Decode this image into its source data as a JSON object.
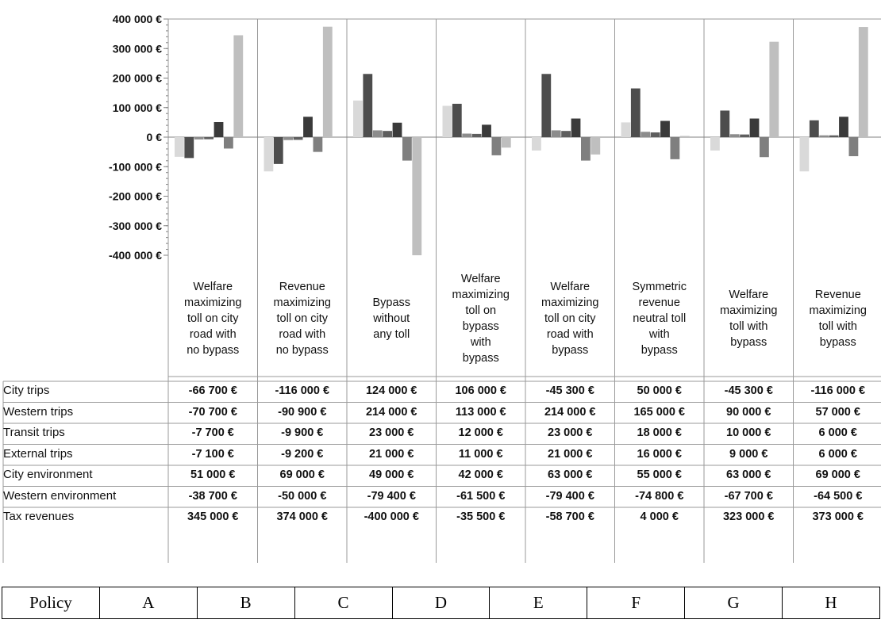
{
  "chart_data": {
    "type": "bar",
    "ylim": [
      -400000,
      400000
    ],
    "y_ticks": [
      "400 000 €",
      "300 000 €",
      "200 000 €",
      "100 000 €",
      "0 €",
      "-100 000 €",
      "-200 000 €",
      "-300 000 €",
      "-400 000 €"
    ],
    "y_tick_values": [
      400000,
      300000,
      200000,
      100000,
      0,
      -100000,
      -200000,
      -300000,
      -400000
    ],
    "categories": [
      "Welfare maximizing toll on city road with no bypass",
      "Revenue maximizing toll on city road with no bypass",
      "Bypass without any toll",
      "Welfare maximizing toll on bypass with bypass",
      "Welfare maximizing toll on city road with bypass",
      "Symmetric revenue neutral toll with bypass",
      "Welfare maximizing toll with bypass",
      "Revenue maximizing toll with bypass"
    ],
    "category_lines": [
      [
        "Welfare",
        "maximizing",
        "toll on city",
        "road with",
        "no bypass"
      ],
      [
        "Revenue",
        "maximizing",
        "toll on city",
        "road with",
        "no bypass"
      ],
      [
        "Bypass",
        "without",
        "any toll"
      ],
      [
        "Welfare",
        "maximizing",
        "toll on",
        "bypass",
        "with",
        "bypass"
      ],
      [
        "Welfare",
        "maximizing",
        "toll on city",
        "road with",
        "bypass"
      ],
      [
        "Symmetric",
        "revenue",
        "neutral toll",
        "with",
        "bypass"
      ],
      [
        "Welfare",
        "maximizing",
        "toll with",
        "bypass"
      ],
      [
        "Revenue",
        "maximizing",
        "toll with",
        "bypass"
      ]
    ],
    "series": [
      {
        "name": "City trips",
        "color": "#d9d9d9",
        "values": [
          -66700,
          -116000,
          124000,
          106000,
          -45300,
          50000,
          -45300,
          -116000
        ],
        "labels": [
          "-66 700 €",
          "-116 000 €",
          "124 000 €",
          "106 000 €",
          "-45 300 €",
          "50 000 €",
          "-45 300 €",
          "-116 000 €"
        ]
      },
      {
        "name": "Western trips",
        "color": "#4d4d4d",
        "values": [
          -70700,
          -90900,
          214000,
          113000,
          214000,
          165000,
          90000,
          57000
        ],
        "labels": [
          "-70 700 €",
          "-90 900 €",
          "214 000 €",
          "113 000 €",
          "214 000 €",
          "165 000 €",
          "90 000 €",
          "57 000 €"
        ]
      },
      {
        "name": "Transit trips",
        "color": "#8c8c8c",
        "values": [
          -7700,
          -9900,
          23000,
          12000,
          23000,
          18000,
          10000,
          6000
        ],
        "labels": [
          "-7 700 €",
          "-9 900 €",
          "23 000 €",
          "12 000 €",
          "23 000 €",
          "18 000 €",
          "10 000 €",
          "6 000 €"
        ]
      },
      {
        "name": "External trips",
        "color": "#5e5e5e",
        "values": [
          -7100,
          -9200,
          21000,
          11000,
          21000,
          16000,
          9000,
          6000
        ],
        "labels": [
          "-7 100 €",
          "-9 200 €",
          "21 000 €",
          "11 000 €",
          "21 000 €",
          "16 000 €",
          "9 000 €",
          "6 000 €"
        ]
      },
      {
        "name": "City environment",
        "color": "#3a3a3a",
        "values": [
          51000,
          69000,
          49000,
          42000,
          63000,
          55000,
          63000,
          69000
        ],
        "labels": [
          "51 000 €",
          "69 000 €",
          "49 000 €",
          "42 000 €",
          "63 000 €",
          "55 000 €",
          "63 000 €",
          "69 000 €"
        ]
      },
      {
        "name": "Western environment",
        "color": "#7f7f7f",
        "values": [
          -38700,
          -50000,
          -79400,
          -61500,
          -79400,
          -74800,
          -67700,
          -64500
        ],
        "labels": [
          "-38 700 €",
          "-50 000 €",
          "-79 400 €",
          "-61 500 €",
          "-79 400 €",
          "-74 800 €",
          "-67 700 €",
          "-64 500 €"
        ]
      },
      {
        "name": "Tax revenues",
        "color": "#bfbfbf",
        "values": [
          345000,
          374000,
          -400000,
          -35500,
          -58700,
          4000,
          323000,
          373000
        ],
        "labels": [
          "345 000 €",
          "374 000 €",
          "-400 000 €",
          "-35 500 €",
          "-58 700 €",
          "4 000 €",
          "323 000 €",
          "373 000 €"
        ]
      }
    ],
    "grid": "vertical category separators",
    "legend": "table rows below chart"
  },
  "policy_table": {
    "header": "Policy",
    "letters": [
      "A",
      "B",
      "C",
      "D",
      "E",
      "F",
      "G",
      "H"
    ]
  }
}
